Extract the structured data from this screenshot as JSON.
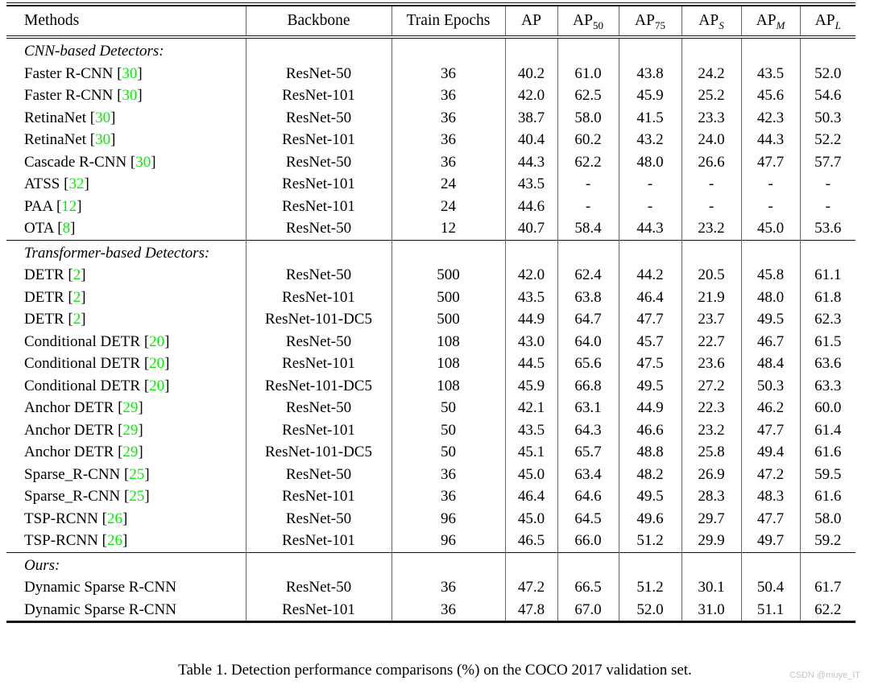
{
  "table": {
    "citation_color": "#00ee00",
    "columns": [
      {
        "label": "Methods"
      },
      {
        "label": "Backbone"
      },
      {
        "label": "Train Epochs"
      },
      {
        "label": "AP"
      },
      {
        "label": "AP",
        "sub": "50",
        "sub_italic": false
      },
      {
        "label": "AP",
        "sub": "75",
        "sub_italic": false
      },
      {
        "label": "AP",
        "sub": "S",
        "sub_italic": true
      },
      {
        "label": "AP",
        "sub": "M",
        "sub_italic": true
      },
      {
        "label": "AP",
        "sub": "L",
        "sub_italic": true
      }
    ],
    "sections": [
      {
        "label": "CNN-based Detectors:",
        "rows": [
          {
            "method": "Faster R-CNN",
            "cite": "30",
            "backbone": "ResNet-50",
            "epochs": "36",
            "values": [
              "40.2",
              "61.0",
              "43.8",
              "24.2",
              "43.5",
              "52.0"
            ]
          },
          {
            "method": "Faster R-CNN",
            "cite": "30",
            "backbone": "ResNet-101",
            "epochs": "36",
            "values": [
              "42.0",
              "62.5",
              "45.9",
              "25.2",
              "45.6",
              "54.6"
            ]
          },
          {
            "method": "RetinaNet",
            "cite": "30",
            "backbone": "ResNet-50",
            "epochs": "36",
            "values": [
              "38.7",
              "58.0",
              "41.5",
              "23.3",
              "42.3",
              "50.3"
            ]
          },
          {
            "method": "RetinaNet",
            "cite": "30",
            "backbone": "ResNet-101",
            "epochs": "36",
            "values": [
              "40.4",
              "60.2",
              "43.2",
              "24.0",
              "44.3",
              "52.2"
            ]
          },
          {
            "method": "Cascade R-CNN",
            "cite": "30",
            "backbone": "ResNet-50",
            "epochs": "36",
            "values": [
              "44.3",
              "62.2",
              "48.0",
              "26.6",
              "47.7",
              "57.7"
            ]
          },
          {
            "method": "ATSS",
            "cite": "32",
            "backbone": "ResNet-101",
            "epochs": "24",
            "values": [
              "43.5",
              "-",
              "-",
              "-",
              "-",
              "-"
            ]
          },
          {
            "method": "PAA",
            "cite": "12",
            "backbone": "ResNet-101",
            "epochs": "24",
            "values": [
              "44.6",
              "-",
              "-",
              "-",
              "-",
              "-"
            ]
          },
          {
            "method": "OTA",
            "cite": "8",
            "backbone": "ResNet-50",
            "epochs": "12",
            "values": [
              "40.7",
              "58.4",
              "44.3",
              "23.2",
              "45.0",
              "53.6"
            ]
          }
        ]
      },
      {
        "label": "Transformer-based Detectors:",
        "rows": [
          {
            "method": "DETR",
            "cite": "2",
            "backbone": "ResNet-50",
            "epochs": "500",
            "values": [
              "42.0",
              "62.4",
              "44.2",
              "20.5",
              "45.8",
              "61.1"
            ]
          },
          {
            "method": "DETR",
            "cite": "2",
            "backbone": "ResNet-101",
            "epochs": "500",
            "values": [
              "43.5",
              "63.8",
              "46.4",
              "21.9",
              "48.0",
              "61.8"
            ]
          },
          {
            "method": "DETR",
            "cite": "2",
            "backbone": "ResNet-101-DC5",
            "epochs": "500",
            "values": [
              "44.9",
              "64.7",
              "47.7",
              "23.7",
              "49.5",
              "62.3"
            ]
          },
          {
            "method": "Conditional DETR",
            "cite": "20",
            "backbone": "ResNet-50",
            "epochs": "108",
            "values": [
              "43.0",
              "64.0",
              "45.7",
              "22.7",
              "46.7",
              "61.5"
            ]
          },
          {
            "method": "Conditional DETR",
            "cite": "20",
            "backbone": "ResNet-101",
            "epochs": "108",
            "values": [
              "44.5",
              "65.6",
              "47.5",
              "23.6",
              "48.4",
              "63.6"
            ]
          },
          {
            "method": "Conditional DETR",
            "cite": "20",
            "backbone": "ResNet-101-DC5",
            "epochs": "108",
            "values": [
              "45.9",
              "66.8",
              "49.5",
              "27.2",
              "50.3",
              "63.3"
            ]
          },
          {
            "method": "Anchor DETR",
            "cite": "29",
            "backbone": "ResNet-50",
            "epochs": "50",
            "values": [
              "42.1",
              "63.1",
              "44.9",
              "22.3",
              "46.2",
              "60.0"
            ]
          },
          {
            "method": "Anchor DETR",
            "cite": "29",
            "backbone": "ResNet-101",
            "epochs": "50",
            "values": [
              "43.5",
              "64.3",
              "46.6",
              "23.2",
              "47.7",
              "61.4"
            ]
          },
          {
            "method": "Anchor DETR",
            "cite": "29",
            "backbone": "ResNet-101-DC5",
            "epochs": "50",
            "values": [
              "45.1",
              "65.7",
              "48.8",
              "25.8",
              "49.4",
              "61.6"
            ]
          },
          {
            "method": "Sparse_R-CNN",
            "cite": "25",
            "backbone": "ResNet-50",
            "epochs": "36",
            "values": [
              "45.0",
              "63.4",
              "48.2",
              "26.9",
              "47.2",
              "59.5"
            ]
          },
          {
            "method": "Sparse_R-CNN",
            "cite": "25",
            "backbone": "ResNet-101",
            "epochs": "36",
            "values": [
              "46.4",
              "64.6",
              "49.5",
              "28.3",
              "48.3",
              "61.6"
            ]
          },
          {
            "method": "TSP-RCNN",
            "cite": "26",
            "backbone": "ResNet-50",
            "epochs": "96",
            "values": [
              "45.0",
              "64.5",
              "49.6",
              "29.7",
              "47.7",
              "58.0"
            ]
          },
          {
            "method": "TSP-RCNN",
            "cite": "26",
            "backbone": "ResNet-101",
            "epochs": "96",
            "values": [
              "46.5",
              "66.0",
              "51.2",
              "29.9",
              "49.7",
              "59.2"
            ]
          }
        ]
      },
      {
        "label": "Ours:",
        "rows": [
          {
            "method": "Dynamic Sparse R-CNN",
            "cite": null,
            "backbone": "ResNet-50",
            "epochs": "36",
            "values": [
              "47.2",
              "66.5",
              "51.2",
              "30.1",
              "50.4",
              "61.7"
            ]
          },
          {
            "method": "Dynamic Sparse R-CNN",
            "cite": null,
            "backbone": "ResNet-101",
            "epochs": "36",
            "values": [
              "47.8",
              "67.0",
              "52.0",
              "31.0",
              "51.1",
              "62.2"
            ]
          }
        ]
      }
    ]
  },
  "caption": "Table 1. Detection performance comparisons (%) on the COCO 2017 validation set.",
  "watermark": "CSDN @muye_IT"
}
